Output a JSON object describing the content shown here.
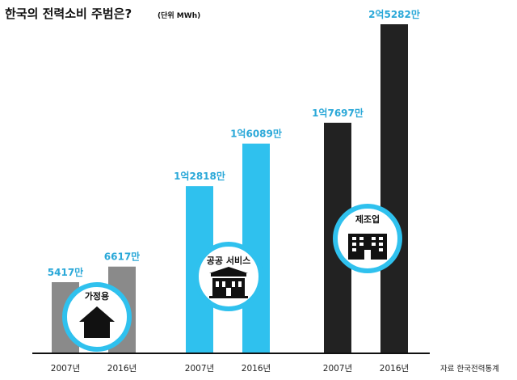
{
  "chart_data": {
    "type": "bar",
    "title": "한국의 전력소비 주범은?",
    "unit_note": "(단위 MWh)",
    "source": "자료 한국전력통계",
    "colors": {
      "gray": "#8a8a8a",
      "blue": "#2fc1ee",
      "black": "#222222",
      "label_blue": "#2aa8d8"
    },
    "groups": [
      {
        "name": "가정용",
        "icon": "house-icon",
        "color": "gray",
        "bars": [
          {
            "year": "2007년",
            "value": 5417,
            "label": "5417만"
          },
          {
            "year": "2016년",
            "value": 6617,
            "label": "6617만"
          }
        ]
      },
      {
        "name": "공공 서비스",
        "icon": "public-building-icon",
        "color": "blue",
        "bars": [
          {
            "year": "2007년",
            "value": 12818,
            "label": "1억2818만"
          },
          {
            "year": "2016년",
            "value": 16089,
            "label": "1억6089만"
          }
        ]
      },
      {
        "name": "제조업",
        "icon": "factory-building-icon",
        "color": "black",
        "bars": [
          {
            "year": "2007년",
            "value": 17697,
            "label": "1억7697만"
          },
          {
            "year": "2016년",
            "value": 25282,
            "label": "2억5282만"
          }
        ]
      }
    ]
  }
}
